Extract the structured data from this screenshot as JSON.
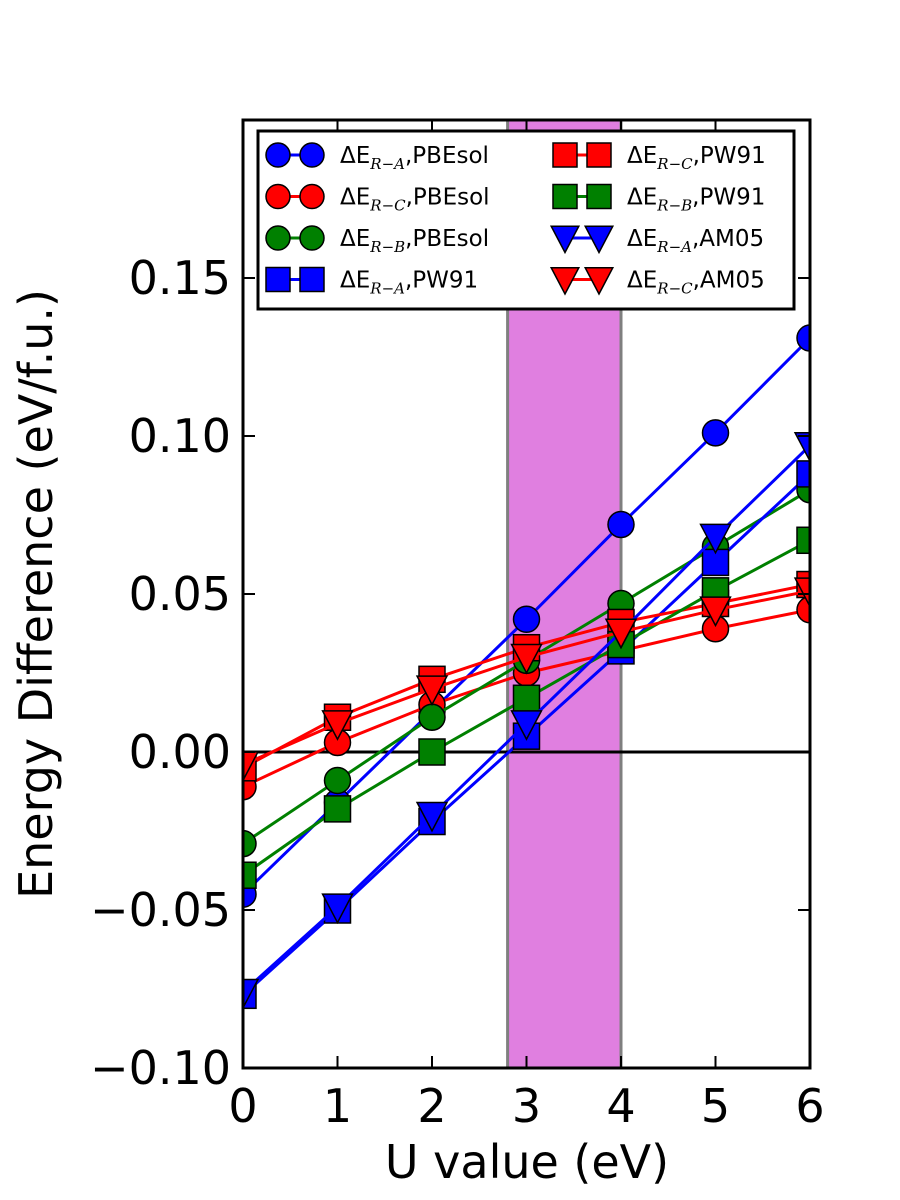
{
  "chart_data": {
    "type": "line",
    "xlabel": "U value (eV)",
    "ylabel": "Energy Difference (eV/f.u.)",
    "xlim": [
      0,
      6
    ],
    "ylim": [
      -0.1,
      0.2
    ],
    "x_ticks": [
      "0",
      "1",
      "2",
      "3",
      "4",
      "5",
      "6"
    ],
    "x_tick_values": [
      0,
      1,
      2,
      3,
      4,
      5,
      6
    ],
    "y_ticks": [
      "−0.10",
      "−0.05",
      "0.00",
      "0.05",
      "0.10",
      "0.15"
    ],
    "y_tick_values": [
      -0.1,
      -0.05,
      0.0,
      0.05,
      0.1,
      0.15
    ],
    "grid": false,
    "zero_line": 0,
    "highlight_band": {
      "x_range": [
        2.8,
        4.0
      ],
      "color": "#e07fe0",
      "edge_color": "#7f7f7f"
    },
    "legend": {
      "placement": "top",
      "columns": 2
    },
    "x": [
      0,
      1,
      2,
      3,
      4,
      5,
      6
    ],
    "series": [
      {
        "name_main": "ΔE",
        "name_sub": "R−A",
        "name_tail": ",PBEsol",
        "color": "#0000ff",
        "marker": "circle",
        "values": [
          -0.045,
          -0.016,
          0.013,
          0.042,
          0.072,
          0.101,
          0.131
        ]
      },
      {
        "name_main": "ΔE",
        "name_sub": "R−C",
        "name_tail": ",PBEsol",
        "color": "#ff0000",
        "marker": "circle",
        "values": [
          -0.011,
          0.003,
          0.015,
          0.025,
          0.032,
          0.039,
          0.045
        ]
      },
      {
        "name_main": "ΔE",
        "name_sub": "R−B",
        "name_tail": ",PBEsol",
        "color": "#008000",
        "marker": "circle",
        "values": [
          -0.029,
          -0.009,
          0.011,
          0.029,
          0.047,
          0.065,
          0.083
        ]
      },
      {
        "name_main": "ΔE",
        "name_sub": "R−A",
        "name_tail": ",PW91",
        "color": "#0000ff",
        "marker": "square",
        "values": [
          -0.077,
          -0.05,
          -0.022,
          0.005,
          0.032,
          0.06,
          0.088
        ]
      },
      {
        "name_main": "ΔE",
        "name_sub": "R−C",
        "name_tail": ",PW91",
        "color": "#ff0000",
        "marker": "square",
        "values": [
          -0.005,
          0.011,
          0.023,
          0.033,
          0.041,
          0.047,
          0.053
        ]
      },
      {
        "name_main": "ΔE",
        "name_sub": "R−B",
        "name_tail": ",PW91",
        "color": "#008000",
        "marker": "square",
        "values": [
          -0.039,
          -0.018,
          0.0,
          0.017,
          0.034,
          0.051,
          0.067
        ]
      },
      {
        "name_main": "ΔE",
        "name_sub": "R−A",
        "name_tail": ",AM05",
        "color": "#0000ff",
        "marker": "triangle-down",
        "values": [
          -0.076,
          -0.049,
          -0.02,
          0.009,
          0.038,
          0.068,
          0.097
        ]
      },
      {
        "name_main": "ΔE",
        "name_sub": "R−C",
        "name_tail": ",AM05",
        "color": "#ff0000",
        "marker": "triangle-down",
        "values": [
          -0.004,
          0.009,
          0.02,
          0.03,
          0.038,
          0.045,
          0.051
        ]
      }
    ]
  }
}
